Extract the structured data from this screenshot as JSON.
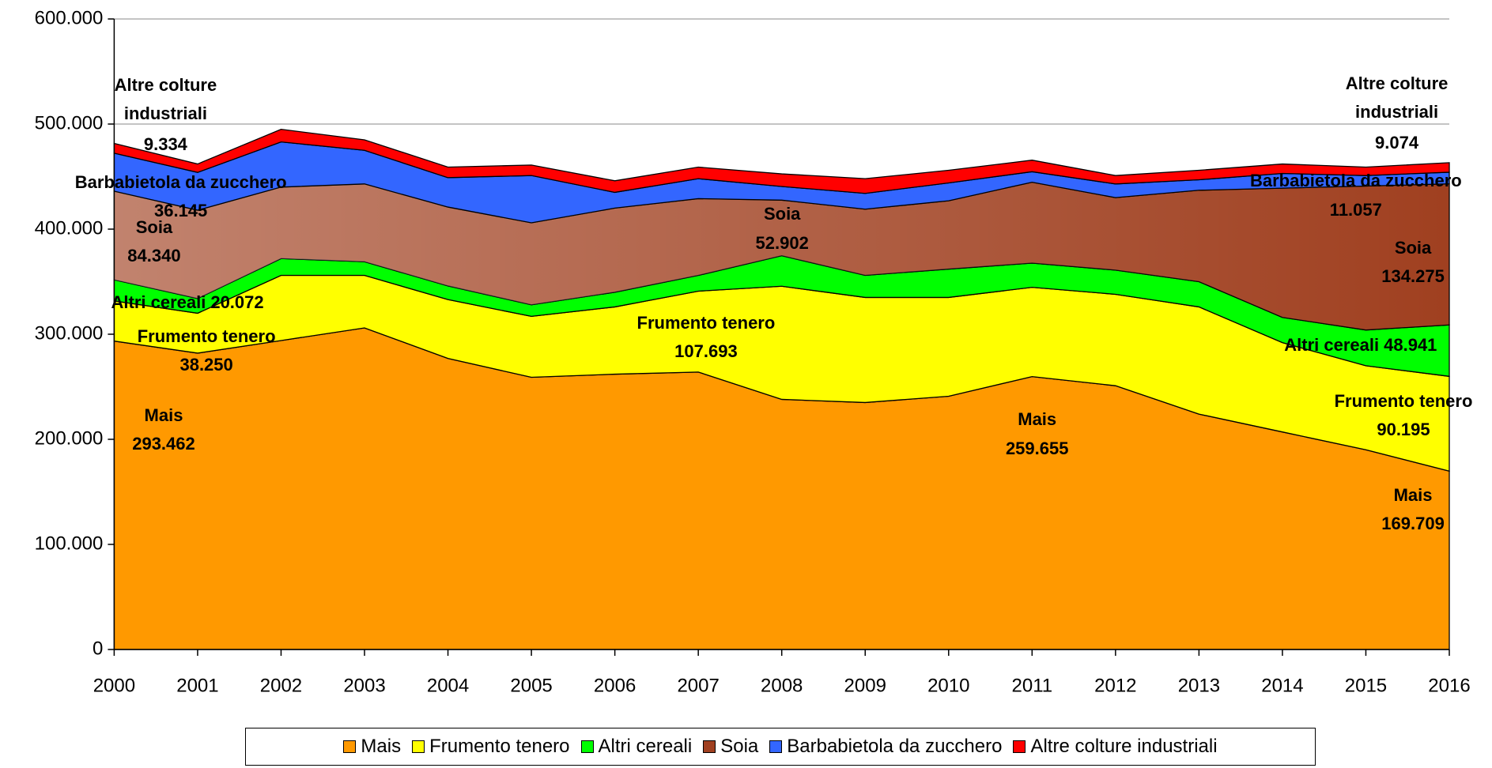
{
  "chart_data": {
    "type": "stacked-area",
    "categories": [
      "2000",
      "2001",
      "2002",
      "2003",
      "2004",
      "2005",
      "2006",
      "2007",
      "2008",
      "2009",
      "2010",
      "2011",
      "2012",
      "2013",
      "2014",
      "2015",
      "2016"
    ],
    "ylim": [
      0,
      600000
    ],
    "yticks": [
      0,
      {
        "value": 100000,
        "label": "100.000"
      },
      {
        "value": 200000,
        "label": "200.000"
      },
      {
        "value": 300000,
        "label": "300.000"
      },
      {
        "value": 400000,
        "label": "400.000"
      },
      {
        "value": 500000,
        "label": "500.000"
      },
      {
        "value": 600000,
        "label": "600.000"
      }
    ],
    "grid": true,
    "legend": "bottom",
    "series": [
      {
        "name": "Mais",
        "color": "#ff9900",
        "values": [
          293462,
          282000,
          294000,
          306000,
          277000,
          259000,
          262000,
          264000,
          238000,
          235000,
          241000,
          259655,
          251000,
          224000,
          207000,
          190000,
          169709
        ],
        "value_labels": [
          "293.462",
          null,
          null,
          null,
          null,
          null,
          null,
          null,
          null,
          null,
          null,
          "259.655",
          null,
          null,
          null,
          null,
          "169.709"
        ]
      },
      {
        "name": "Frumento tenero",
        "color": "#ffff00",
        "values": [
          38250,
          38000,
          62000,
          50000,
          56000,
          58000,
          64000,
          77000,
          107693,
          100000,
          94000,
          85000,
          87000,
          102000,
          85000,
          80000,
          90195
        ],
        "value_labels": [
          "38.250",
          null,
          null,
          null,
          null,
          null,
          null,
          null,
          "107.693",
          null,
          null,
          null,
          null,
          null,
          null,
          null,
          "90.195"
        ]
      },
      {
        "name": "Altri cereali",
        "color": "#00ff00",
        "values": [
          20072,
          14000,
          16000,
          13000,
          13000,
          11000,
          14000,
          15000,
          29000,
          21000,
          27000,
          23000,
          23000,
          24000,
          24000,
          34000,
          48941
        ],
        "value_labels": [
          "20.072",
          null,
          null,
          null,
          null,
          null,
          null,
          null,
          null,
          null,
          null,
          null,
          null,
          null,
          null,
          null,
          "48.941"
        ]
      },
      {
        "name": "Soia",
        "color": "#a04020",
        "values": [
          84340,
          84000,
          68000,
          74000,
          75000,
          78000,
          80000,
          73000,
          52902,
          63000,
          65000,
          77000,
          69000,
          87000,
          123000,
          137000,
          134275
        ],
        "value_labels": [
          "84.340",
          null,
          null,
          null,
          null,
          null,
          null,
          null,
          "52.902",
          null,
          null,
          null,
          null,
          null,
          null,
          null,
          "134.275"
        ]
      },
      {
        "name": "Barbabietola da zucchero",
        "color": "#3366ff",
        "values": [
          36145,
          36000,
          43000,
          32000,
          28000,
          45000,
          15000,
          19000,
          13000,
          15000,
          17000,
          10000,
          13000,
          10000,
          14000,
          10000,
          11057
        ],
        "value_labels": [
          "36.145",
          null,
          null,
          null,
          null,
          null,
          null,
          null,
          null,
          null,
          null,
          null,
          null,
          null,
          null,
          null,
          "11.057"
        ]
      },
      {
        "name": "Altre colture industriali",
        "color": "#ff0000",
        "values": [
          9334,
          8000,
          12000,
          10000,
          10000,
          10000,
          11000,
          11000,
          12000,
          14000,
          12000,
          11000,
          8000,
          9000,
          9000,
          8000,
          9074
        ],
        "value_labels": [
          "9.334",
          null,
          null,
          null,
          null,
          null,
          null,
          null,
          null,
          null,
          null,
          null,
          null,
          null,
          null,
          null,
          "9.074"
        ]
      }
    ]
  }
}
